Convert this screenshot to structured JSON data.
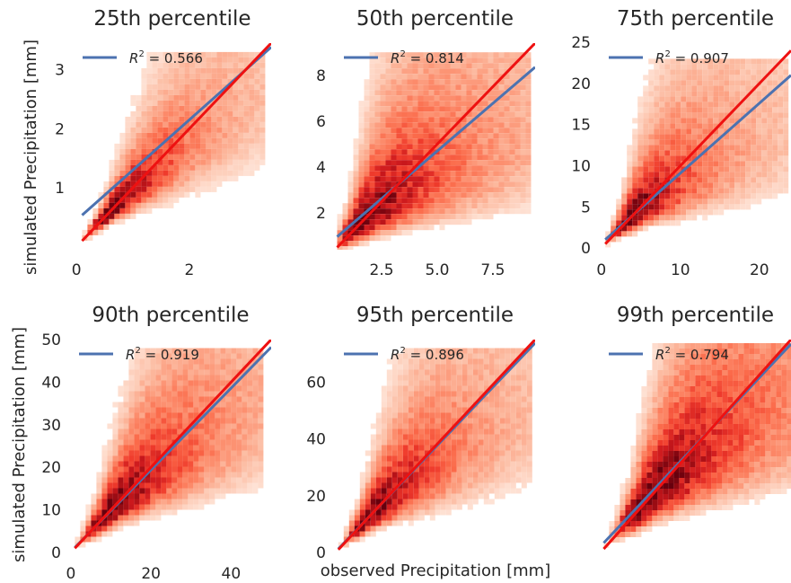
{
  "figure": {
    "ylabel": "simulated Precipitation [mm]",
    "xlabel": "observed Precipitation [mm]"
  },
  "colors": {
    "fit_line": "#4c72b0",
    "identity_line": "#ee1111",
    "density_low": "#fff5f0",
    "density_high": "#67000d",
    "text": "#262626"
  },
  "chart_data": [
    {
      "type": "heatmap",
      "title": "25th percentile",
      "legend": {
        "label": "R",
        "sup": "2",
        "value": "= 0.566"
      },
      "xlim": [
        -0.05,
        3.45
      ],
      "ylim": [
        -0.05,
        3.45
      ],
      "xticks": [
        {
          "v": 0,
          "label": "0"
        },
        {
          "v": 2,
          "label": "2"
        }
      ],
      "yticks": [
        {
          "v": 1,
          "label": "1"
        },
        {
          "v": 2,
          "label": "2"
        },
        {
          "v": 3,
          "label": "3"
        }
      ],
      "data_range": [
        0.1,
        3.3
      ],
      "density_center": 0.55,
      "density_spread": 0.22,
      "fit_line": {
        "slope": 0.85,
        "intercept": 0.45
      },
      "identity_line": {
        "slope": 1,
        "intercept": 0
      }
    },
    {
      "type": "heatmap",
      "title": "50th percentile",
      "legend": {
        "label": "R",
        "sup": "2",
        "value": "= 0.814"
      },
      "xlim": [
        0.4,
        9.4
      ],
      "ylim": [
        0.4,
        9.4
      ],
      "xticks": [
        {
          "v": 2.5,
          "label": "2.5"
        },
        {
          "v": 5.0,
          "label": "5.0"
        },
        {
          "v": 7.5,
          "label": "7.5"
        }
      ],
      "yticks": [
        {
          "v": 2,
          "label": "2"
        },
        {
          "v": 4,
          "label": "4"
        },
        {
          "v": 6,
          "label": "6"
        },
        {
          "v": 8,
          "label": "8"
        }
      ],
      "data_range": [
        0.5,
        9.0
      ],
      "density_center": 1.6,
      "density_spread": 0.4,
      "fit_line": {
        "slope": 0.83,
        "intercept": 0.55
      },
      "identity_line": {
        "slope": 1,
        "intercept": 0
      }
    },
    {
      "type": "heatmap",
      "title": "75th percentile",
      "legend": {
        "label": "R",
        "sup": "2",
        "value": "= 0.907"
      },
      "xlim": [
        -0.2,
        24
      ],
      "ylim": [
        -0.2,
        24.9
      ],
      "xticks": [
        {
          "v": 0,
          "label": "0"
        },
        {
          "v": 10,
          "label": "10"
        },
        {
          "v": 20,
          "label": "20"
        }
      ],
      "yticks": [
        {
          "v": 0,
          "label": "0"
        },
        {
          "v": 5,
          "label": "5"
        },
        {
          "v": 10,
          "label": "10"
        },
        {
          "v": 15,
          "label": "15"
        },
        {
          "v": 20,
          "label": "20"
        },
        {
          "v": 25,
          "label": "25"
        }
      ],
      "data_range": [
        0.5,
        23
      ],
      "density_center": 3.5,
      "density_spread": 0.35,
      "fit_line": {
        "slope": 0.85,
        "intercept": 0.6
      },
      "identity_line": {
        "slope": 1,
        "intercept": 0
      }
    },
    {
      "type": "heatmap",
      "title": "90th percentile",
      "legend": {
        "label": "R",
        "sup": "2",
        "value": "= 0.919"
      },
      "xlim": [
        -0.2,
        50
      ],
      "ylim": [
        -0.2,
        50
      ],
      "xticks": [
        {
          "v": 0,
          "label": "0"
        },
        {
          "v": 20,
          "label": "20"
        },
        {
          "v": 40,
          "label": "40"
        }
      ],
      "yticks": [
        {
          "v": 0,
          "label": "0"
        },
        {
          "v": 10,
          "label": "10"
        },
        {
          "v": 20,
          "label": "20"
        },
        {
          "v": 30,
          "label": "30"
        },
        {
          "v": 40,
          "label": "40"
        },
        {
          "v": 50,
          "label": "50"
        }
      ],
      "data_range": [
        1,
        48
      ],
      "density_center": 9,
      "density_spread": 0.3,
      "fit_line": {
        "slope": 0.96,
        "intercept": 0.2
      },
      "identity_line": {
        "slope": 1,
        "intercept": 0
      }
    },
    {
      "type": "heatmap",
      "title": "95th percentile",
      "legend": {
        "label": "R",
        "sup": "2",
        "value": "= 0.896"
      },
      "xlim": [
        -0.3,
        75
      ],
      "ylim": [
        -0.3,
        75
      ],
      "xticks": [],
      "yticks": [
        {
          "v": 0,
          "label": "0"
        },
        {
          "v": 20,
          "label": "20"
        },
        {
          "v": 40,
          "label": "40"
        },
        {
          "v": 60,
          "label": "60"
        }
      ],
      "data_range": [
        1,
        72
      ],
      "density_center": 12,
      "density_spread": 0.3,
      "fit_line": {
        "slope": 0.98,
        "intercept": 0.3
      },
      "identity_line": {
        "slope": 1,
        "intercept": 0
      }
    },
    {
      "type": "heatmap",
      "title": "99th percentile",
      "legend": {
        "label": "R",
        "sup": "2",
        "value": "= 0.794"
      },
      "xlim": [
        -0.5,
        120
      ],
      "ylim": [
        -0.5,
        120
      ],
      "xticks": [],
      "yticks": [],
      "data_range": [
        2,
        118
      ],
      "density_center": 28,
      "density_spread": 0.35,
      "fit_line": {
        "slope": 0.95,
        "intercept": 3.5
      },
      "identity_line": {
        "slope": 1,
        "intercept": 0
      }
    }
  ]
}
